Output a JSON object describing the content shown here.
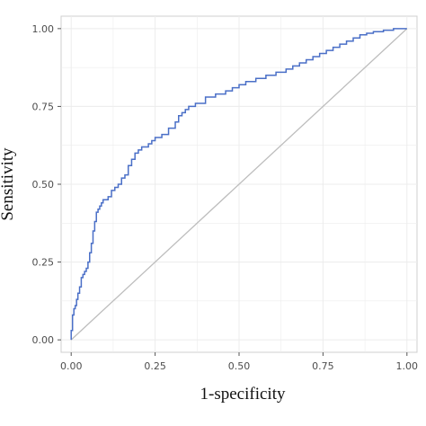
{
  "chart_data": {
    "type": "line",
    "title": "",
    "xlabel": "1-specificity",
    "ylabel": "Sensitivity",
    "xlim": [
      -0.03,
      1.03
    ],
    "ylim": [
      -0.04,
      1.04
    ],
    "xticks": [
      0.0,
      0.25,
      0.5,
      0.75,
      1.0
    ],
    "yticks": [
      0.0,
      0.25,
      0.5,
      0.75,
      1.0
    ],
    "xtick_labels": [
      "0.00",
      "0.25",
      "0.50",
      "0.75",
      "1.00"
    ],
    "ytick_labels": [
      "0.00",
      "0.25",
      "0.50",
      "0.75",
      "1.00"
    ],
    "grid": true,
    "colors": {
      "roc": "#4a6fc7",
      "reference": "#bdbdbd",
      "grid": "#ececec",
      "frame": "#cfcfcf"
    },
    "series": [
      {
        "style": "step",
        "x": [
          0.0,
          0.0,
          0.004,
          0.008,
          0.012,
          0.016,
          0.02,
          0.025,
          0.03,
          0.035,
          0.04,
          0.045,
          0.05,
          0.055,
          0.06,
          0.065,
          0.07,
          0.075,
          0.08,
          0.085,
          0.09,
          0.095,
          0.1,
          0.11,
          0.12,
          0.13,
          0.14,
          0.15,
          0.16,
          0.17,
          0.18,
          0.19,
          0.2,
          0.21,
          0.22,
          0.23,
          0.24,
          0.25,
          0.27,
          0.29,
          0.31,
          0.32,
          0.33,
          0.34,
          0.35,
          0.37,
          0.4,
          0.43,
          0.46,
          0.48,
          0.5,
          0.52,
          0.55,
          0.58,
          0.61,
          0.64,
          0.66,
          0.68,
          0.7,
          0.72,
          0.74,
          0.76,
          0.78,
          0.8,
          0.82,
          0.84,
          0.86,
          0.88,
          0.9,
          0.93,
          0.96,
          1.0
        ],
        "y": [
          0.0,
          0.03,
          0.08,
          0.1,
          0.11,
          0.13,
          0.15,
          0.17,
          0.2,
          0.21,
          0.22,
          0.23,
          0.25,
          0.28,
          0.31,
          0.35,
          0.38,
          0.41,
          0.42,
          0.43,
          0.44,
          0.45,
          0.45,
          0.46,
          0.48,
          0.49,
          0.5,
          0.52,
          0.53,
          0.56,
          0.58,
          0.6,
          0.61,
          0.62,
          0.62,
          0.63,
          0.64,
          0.65,
          0.66,
          0.68,
          0.7,
          0.72,
          0.73,
          0.74,
          0.75,
          0.76,
          0.78,
          0.79,
          0.8,
          0.81,
          0.82,
          0.83,
          0.84,
          0.85,
          0.86,
          0.87,
          0.88,
          0.89,
          0.9,
          0.91,
          0.92,
          0.93,
          0.94,
          0.95,
          0.96,
          0.97,
          0.98,
          0.985,
          0.99,
          0.995,
          1.0,
          1.0
        ]
      },
      {
        "style": "diagonal",
        "x": [
          0.0,
          1.0
        ],
        "y": [
          0.0,
          1.0
        ]
      }
    ]
  }
}
